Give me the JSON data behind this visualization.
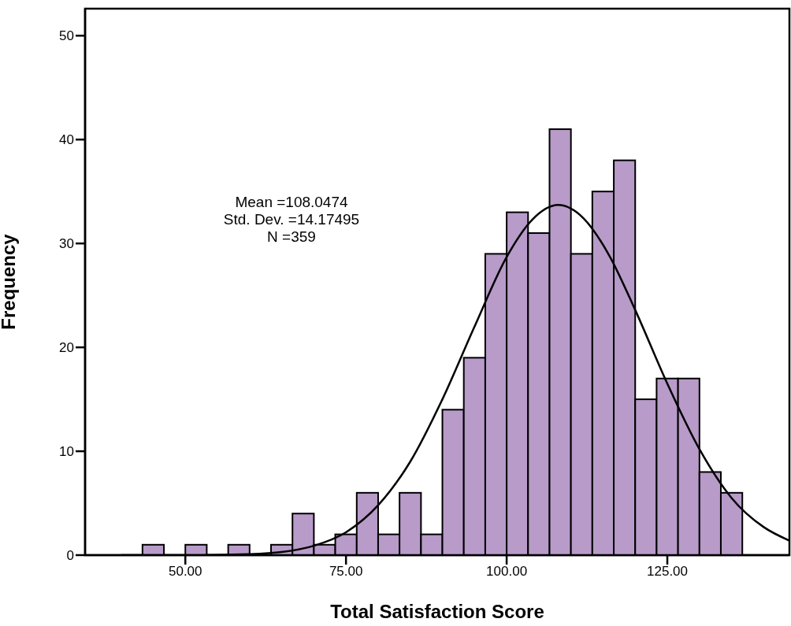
{
  "chart_data": {
    "type": "histogram",
    "xlabel": "Total Satisfaction Score",
    "ylabel": "Frequency",
    "bins": [
      43.33,
      46.67,
      50,
      53.33,
      56.67,
      60,
      63.33,
      66.67,
      70,
      73.33,
      76.67,
      80,
      83.33,
      86.67,
      90,
      93.33,
      96.67,
      100,
      103.33,
      106.67,
      110,
      113.33,
      116.67,
      120,
      123.33,
      126.67,
      130,
      133.33,
      136.67
    ],
    "values": [
      1,
      0,
      1,
      0,
      1,
      0,
      1,
      4,
      1,
      2,
      6,
      2,
      6,
      2,
      14,
      19,
      29,
      33,
      31,
      41,
      29,
      35,
      38,
      15,
      17,
      17,
      8,
      6
    ],
    "color": "#b89bc9",
    "series": [
      {
        "type": "line",
        "color": "#000000",
        "x": [
          40,
          50,
          60,
          65,
          70,
          75,
          80,
          85,
          90,
          95,
          100,
          104,
          108,
          112,
          116,
          120,
          125,
          130,
          135,
          140,
          144
        ],
        "values": [
          0,
          0,
          0.1,
          0.3,
          0.9,
          2.2,
          4.8,
          9.0,
          15.0,
          22.0,
          28.7,
          32.3,
          33.7,
          32.4,
          28.8,
          23.6,
          16.5,
          10.2,
          5.5,
          2.7,
          1.4
        ]
      }
    ],
    "xlim": [
      34.4,
      144
    ],
    "xticks": [
      {
        "value": 50,
        "label": "50.00"
      },
      {
        "value": 75,
        "label": "75.00"
      },
      {
        "value": 100,
        "label": "100.00"
      },
      {
        "value": 125,
        "label": "125.00"
      }
    ],
    "ylim": [
      0,
      52.6
    ],
    "yticks": [
      0,
      10,
      20,
      30,
      40,
      50
    ],
    "annotations": [
      "Mean =108.0474",
      "Std. Dev. =14.17495",
      "N =359"
    ],
    "grid": false,
    "legend": false
  }
}
